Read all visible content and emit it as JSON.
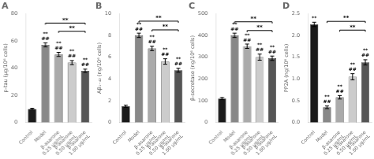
{
  "chart_data": [
    {
      "type": "bar",
      "title": "A",
      "ylabel": "p-tau (μg/10⁶ cells)",
      "categories": [
        "Control",
        "Model",
        "β-asarone\n0.25 μg/mL",
        "β-asarone\n0.50 μg/mL",
        "β-asarone\n1.00 μg/mL"
      ],
      "values": [
        10,
        57,
        50,
        44,
        38
      ],
      "errors": [
        0.5,
        1.5,
        1.5,
        1.5,
        1.2
      ],
      "colors": [
        "#1a1a1a",
        "#888888",
        "#aaaaaa",
        "#cccccc",
        "#555555"
      ],
      "ylim": [
        0,
        80
      ],
      "yticks": [
        0,
        20,
        40,
        60,
        80
      ],
      "grid": false,
      "annotations": [
        {
          "text": [
            "**",
            "##"
          ],
          "category": "Model"
        },
        {
          "text": [
            "**",
            "##"
          ],
          "category": "β-asarone\n0.25 μg/mL"
        },
        {
          "text": [
            "**",
            "##"
          ],
          "category": "β-asarone\n0.50 μg/mL"
        },
        {
          "text": [
            "**",
            "##"
          ],
          "category": "β-asarone\n1.00 μg/mL"
        },
        {
          "text": "**",
          "from": "Model",
          "to": "β-asarone\n1.00 μg/mL",
          "y": 73
        },
        {
          "text": "**",
          "from": "β-asarone\n0.25 μg/mL",
          "to": "β-asarone\n1.00 μg/mL",
          "y": 67
        }
      ]
    },
    {
      "type": "bar",
      "title": "B",
      "ylabel": "Aβ₁₋₄₂ (ng/10⁶ cells)",
      "categories": [
        "Control",
        "Model",
        "β-asarone\n0.25 μg/mL",
        "β-asarone\n0.50 μg/mL",
        "β-asarone\n1.00 μg/mL"
      ],
      "values": [
        1.5,
        8.0,
        6.8,
        5.6,
        4.8
      ],
      "errors": [
        0.1,
        0.2,
        0.2,
        0.25,
        0.18
      ],
      "colors": [
        "#1a1a1a",
        "#888888",
        "#aaaaaa",
        "#cccccc",
        "#555555"
      ],
      "ylim": [
        0,
        10
      ],
      "yticks": [
        0,
        2,
        4,
        6,
        8,
        10
      ],
      "grid": false,
      "annotations": [
        {
          "text": [
            "**",
            "##"
          ],
          "category": "Model"
        },
        {
          "text": [
            "**",
            "##"
          ],
          "category": "β-asarone\n0.25 μg/mL"
        },
        {
          "text": [
            "**",
            "##"
          ],
          "category": "β-asarone\n0.50 μg/mL"
        },
        {
          "text": [
            "**",
            "##"
          ],
          "category": "β-asarone\n1.00 μg/mL"
        },
        {
          "text": "**",
          "from": "Model",
          "to": "β-asarone\n1.00 μg/mL",
          "y": 9.3
        },
        {
          "text": "**",
          "from": "β-asarone\n0.25 μg/mL",
          "to": "β-asarone\n1.00 μg/mL",
          "y": 8.5
        }
      ]
    },
    {
      "type": "bar",
      "title": "C",
      "ylabel": "β-secretase (ng/10⁶ cells)",
      "categories": [
        "Control",
        "Model",
        "β-asarone\n0.25 μg/mL",
        "β-asarone\n0.50 μg/mL",
        "β-asarone\n1.00 μg/mL"
      ],
      "values": [
        110,
        400,
        350,
        300,
        295
      ],
      "errors": [
        5,
        10,
        10,
        14,
        10
      ],
      "colors": [
        "#1a1a1a",
        "#888888",
        "#aaaaaa",
        "#cccccc",
        "#555555"
      ],
      "ylim": [
        0,
        500
      ],
      "yticks": [
        0,
        100,
        200,
        300,
        400,
        500
      ],
      "grid": false,
      "annotations": [
        {
          "text": [
            "**",
            "##"
          ],
          "category": "Model"
        },
        {
          "text": [
            "**",
            "##"
          ],
          "category": "β-asarone\n0.25 μg/mL"
        },
        {
          "text": [
            "**",
            "##"
          ],
          "category": "β-asarone\n0.50 μg/mL"
        },
        {
          "text": [
            "**",
            "##"
          ],
          "category": "β-asarone\n1.00 μg/mL"
        },
        {
          "text": "**",
          "from": "Model",
          "to": "β-asarone\n1.00 μg/mL",
          "y": 462
        },
        {
          "text": "**",
          "from": "β-asarone\n0.25 μg/mL",
          "to": "β-asarone\n1.00 μg/mL",
          "y": 422
        }
      ]
    },
    {
      "type": "bar",
      "title": "D",
      "ylabel": "PP2A (ng/10⁶ cells)",
      "categories": [
        "Control",
        "Model",
        "β-asarone\n0.25 μg/mL",
        "β-asarone\n0.50 μg/mL",
        "β-asarone\n1.00 μg/mL"
      ],
      "values": [
        2.25,
        0.35,
        0.58,
        1.05,
        1.38
      ],
      "errors": [
        0.05,
        0.03,
        0.04,
        0.07,
        0.06
      ],
      "colors": [
        "#1a1a1a",
        "#888888",
        "#aaaaaa",
        "#cccccc",
        "#555555"
      ],
      "ylim": [
        0,
        2.5
      ],
      "yticks": [
        {
          "value": 0,
          "label": "0.0"
        },
        0.5,
        {
          "value": 1,
          "label": "1.0"
        },
        1.5,
        {
          "value": 2,
          "label": "2.0"
        },
        2.5
      ],
      "grid": false,
      "annotations": [
        {
          "text": [
            "**"
          ],
          "category": "Control"
        },
        {
          "text": [
            "**",
            "##"
          ],
          "category": "Model"
        },
        {
          "text": [
            "**",
            "##"
          ],
          "category": "β-asarone\n0.25 μg/mL"
        },
        {
          "text": [
            "**",
            "##"
          ],
          "category": "β-asarone\n0.50 μg/mL"
        },
        {
          "text": [
            "**",
            "##"
          ],
          "category": "β-asarone\n1.00 μg/mL"
        },
        {
          "text": "**",
          "from": "Model",
          "to": "β-asarone\n1.00 μg/mL",
          "y": 2.32
        },
        {
          "text": "**",
          "from": "β-asarone\n0.25 μg/mL",
          "to": "β-asarone\n1.00 μg/mL",
          "y": 2.12
        }
      ]
    }
  ]
}
